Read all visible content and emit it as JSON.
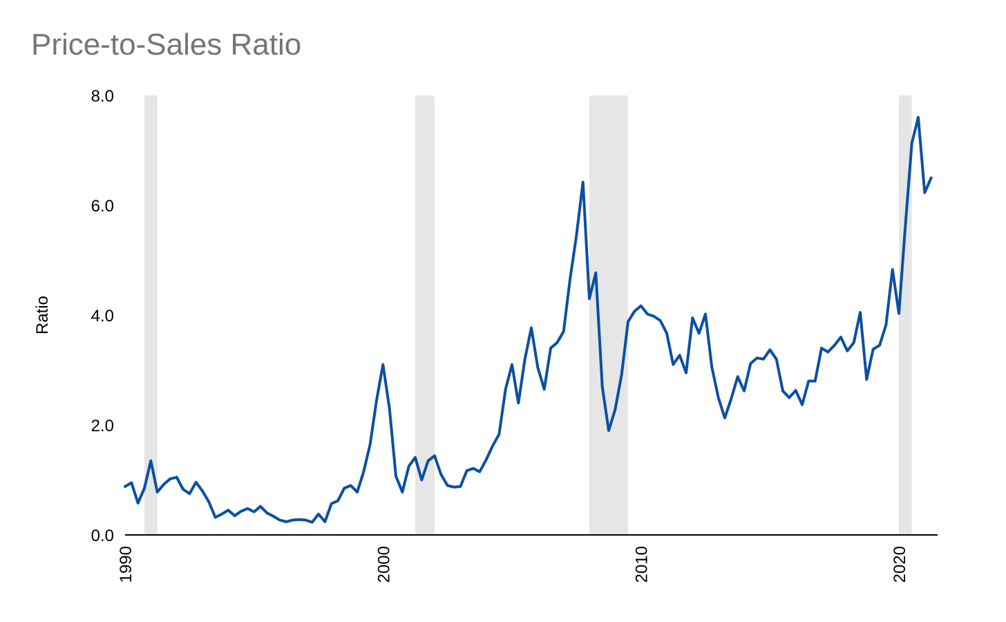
{
  "chart_data": {
    "type": "line",
    "title": "Price-to-Sales Ratio",
    "xlabel": "",
    "ylabel": "Ratio",
    "xlim": [
      1990,
      2021.5
    ],
    "ylim": [
      0,
      8
    ],
    "y_ticks": [
      "0.0",
      "2.0",
      "4.0",
      "6.0",
      "8.0"
    ],
    "x_ticks": [
      "1990",
      "2000",
      "2010",
      "2020"
    ],
    "grid": false,
    "legend": "none",
    "line_color": "#0b4fa3",
    "band_color": "#e6e6e6",
    "recession_bands": [
      {
        "start": 1990.75,
        "end": 1991.25
      },
      {
        "start": 2001.25,
        "end": 2002.0
      },
      {
        "start": 2008.0,
        "end": 2009.5
      },
      {
        "start": 2020.0,
        "end": 2020.5
      }
    ],
    "x": [
      1990.0,
      1990.25,
      1990.5,
      1990.75,
      1991.0,
      1991.25,
      1991.5,
      1991.75,
      1992.0,
      1992.25,
      1992.5,
      1992.75,
      1993.0,
      1993.25,
      1993.5,
      1993.75,
      1994.0,
      1994.25,
      1994.5,
      1994.75,
      1995.0,
      1995.25,
      1995.5,
      1995.75,
      1996.0,
      1996.25,
      1996.5,
      1996.75,
      1997.0,
      1997.25,
      1997.5,
      1997.75,
      1998.0,
      1998.25,
      1998.5,
      1998.75,
      1999.0,
      1999.25,
      1999.5,
      1999.75,
      2000.0,
      2000.25,
      2000.5,
      2000.75,
      2001.0,
      2001.25,
      2001.5,
      2001.75,
      2002.0,
      2002.25,
      2002.5,
      2002.75,
      2003.0,
      2003.25,
      2003.5,
      2003.75,
      2004.0,
      2004.25,
      2004.5,
      2004.75,
      2005.0,
      2005.25,
      2005.5,
      2005.75,
      2006.0,
      2006.25,
      2006.5,
      2006.75,
      2007.0,
      2007.25,
      2007.5,
      2007.75,
      2008.0,
      2008.25,
      2008.5,
      2008.75,
      2009.0,
      2009.25,
      2009.5,
      2009.75,
      2010.0,
      2010.25,
      2010.5,
      2010.75,
      2011.0,
      2011.25,
      2011.5,
      2011.75,
      2012.0,
      2012.25,
      2012.5,
      2012.75,
      2013.0,
      2013.25,
      2013.5,
      2013.75,
      2014.0,
      2014.25,
      2014.5,
      2014.75,
      2015.0,
      2015.25,
      2015.5,
      2015.75,
      2016.0,
      2016.25,
      2016.5,
      2016.75,
      2017.0,
      2017.25,
      2017.5,
      2017.75,
      2018.0,
      2018.25,
      2018.5,
      2018.75,
      2019.0,
      2019.25,
      2019.5,
      2019.75,
      2020.0,
      2020.25,
      2020.5,
      2020.75,
      2021.0,
      2021.25
    ],
    "y": [
      0.88,
      0.95,
      0.58,
      0.85,
      1.35,
      0.78,
      0.92,
      1.02,
      1.05,
      0.83,
      0.75,
      0.96,
      0.8,
      0.6,
      0.32,
      0.38,
      0.45,
      0.35,
      0.43,
      0.48,
      0.42,
      0.52,
      0.4,
      0.34,
      0.27,
      0.24,
      0.27,
      0.28,
      0.27,
      0.23,
      0.38,
      0.24,
      0.57,
      0.62,
      0.85,
      0.9,
      0.78,
      1.15,
      1.65,
      2.45,
      3.1,
      2.3,
      1.07,
      0.78,
      1.25,
      1.41,
      1.0,
      1.35,
      1.44,
      1.1,
      0.9,
      0.87,
      0.88,
      1.17,
      1.21,
      1.15,
      1.37,
      1.62,
      1.83,
      2.65,
      3.1,
      2.4,
      3.2,
      3.77,
      3.05,
      2.65,
      3.4,
      3.5,
      3.7,
      4.65,
      5.45,
      6.42,
      4.3,
      4.77,
      2.7,
      1.9,
      2.28,
      2.92,
      3.88,
      4.07,
      4.17,
      4.02,
      3.98,
      3.9,
      3.67,
      3.1,
      3.27,
      2.95,
      3.95,
      3.67,
      4.02,
      3.05,
      2.5,
      2.13,
      2.48,
      2.88,
      2.62,
      3.12,
      3.22,
      3.2,
      3.37,
      3.2,
      2.62,
      2.5,
      2.63,
      2.37,
      2.8,
      2.8,
      3.4,
      3.33,
      3.45,
      3.6,
      3.35,
      3.5,
      4.05,
      2.83,
      3.38,
      3.45,
      3.82,
      4.83,
      4.03,
      5.62,
      7.13,
      7.6,
      6.23,
      6.5
    ]
  }
}
